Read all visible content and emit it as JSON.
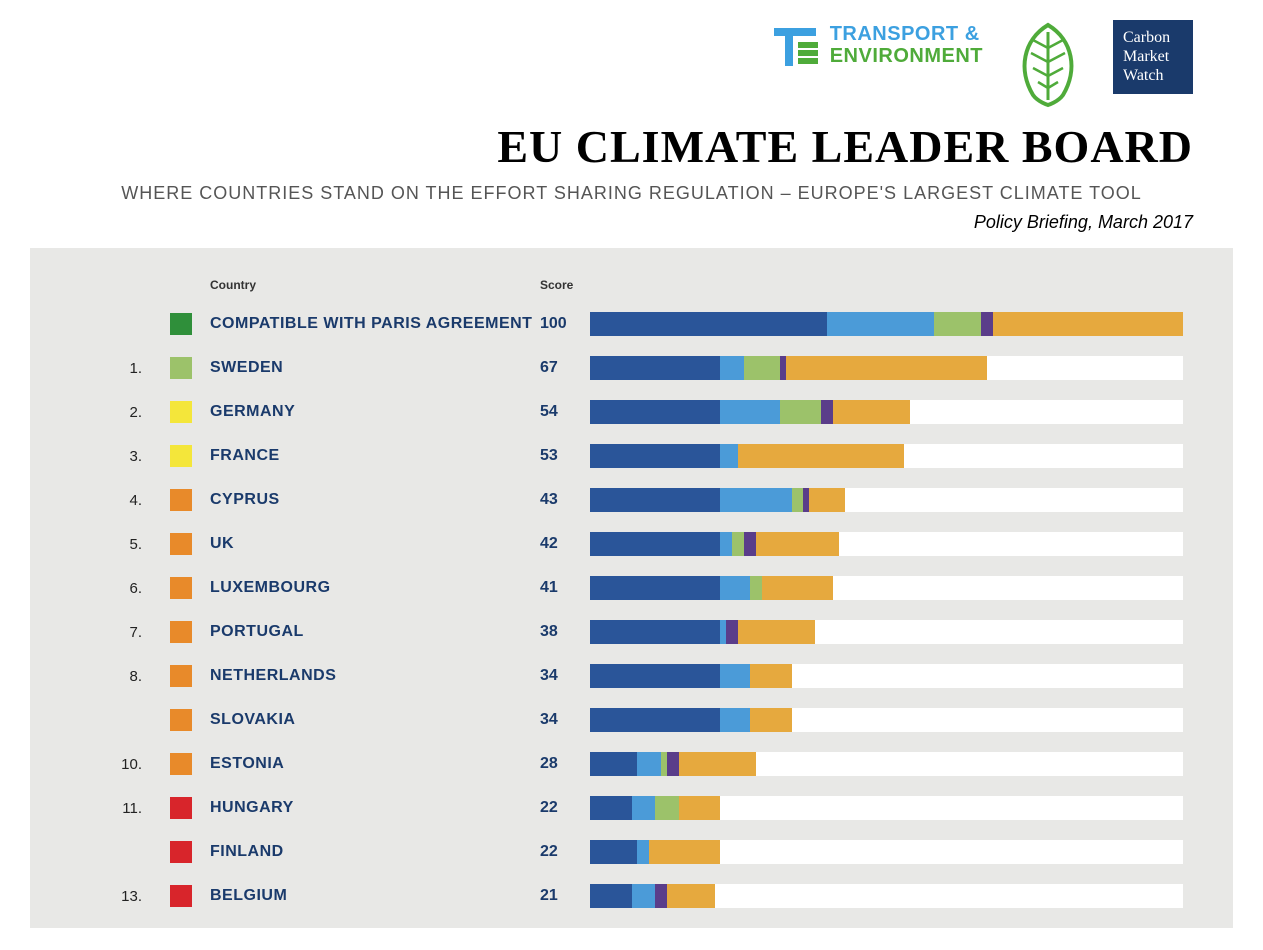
{
  "logos": {
    "te_line1": "TRANSPORT &",
    "te_line2": "ENVIRONMENT",
    "te_blue": "#3ca0e0",
    "te_green": "#4fab3a",
    "cmw_line1": "Carbon",
    "cmw_line2": "Market",
    "cmw_line3": "Watch",
    "cmw_bg": "#1a3a6b",
    "leaf_stroke": "#4fab3a",
    "leaf_fill": "#ffffff"
  },
  "header": {
    "title": "EU CLIMATE LEADER BOARD",
    "subtitle": "WHERE COUNTRIES STAND ON THE EFFORT SHARING REGULATION – EUROPE'S LARGEST CLIMATE TOOL",
    "dateline": "Policy Briefing, March 2017"
  },
  "chart": {
    "background": "#e8e8e6",
    "track_bg": "#ffffff",
    "country_header": "Country",
    "score_header": "Score",
    "text_color": "#1a3a6b",
    "max_score": 100,
    "segment_colors": {
      "darkblue": "#2a5599",
      "lightblue": "#4b9bd8",
      "green": "#9cc26a",
      "purple": "#5a3d8a",
      "orange": "#e6a93e"
    },
    "swatch_colors": {
      "darkgreen": "#2f8f3a",
      "lightgreen": "#9cc26a",
      "yellow": "#f4e63a",
      "orange": "#e88a2a",
      "red": "#d8252b"
    },
    "rows": [
      {
        "rank": "",
        "swatch": "darkgreen",
        "country": "COMPATIBLE WITH PARIS AGREEMENT",
        "score": 100,
        "segments": [
          40,
          18,
          8,
          2,
          32
        ]
      },
      {
        "rank": "1.",
        "swatch": "lightgreen",
        "country": "SWEDEN",
        "score": 67,
        "segments": [
          22,
          4,
          6,
          1,
          34
        ]
      },
      {
        "rank": "2.",
        "swatch": "yellow",
        "country": "GERMANY",
        "score": 54,
        "segments": [
          22,
          10,
          7,
          2,
          13
        ]
      },
      {
        "rank": "3.",
        "swatch": "yellow",
        "country": "FRANCE",
        "score": 53,
        "segments": [
          22,
          3,
          0,
          0,
          28
        ]
      },
      {
        "rank": "4.",
        "swatch": "orange",
        "country": "CYPRUS",
        "score": 43,
        "segments": [
          22,
          12,
          2,
          1,
          6
        ]
      },
      {
        "rank": "5.",
        "swatch": "orange",
        "country": "UK",
        "score": 42,
        "segments": [
          22,
          2,
          2,
          2,
          14
        ]
      },
      {
        "rank": "6.",
        "swatch": "orange",
        "country": "LUXEMBOURG",
        "score": 41,
        "segments": [
          22,
          5,
          2,
          0,
          12
        ]
      },
      {
        "rank": "7.",
        "swatch": "orange",
        "country": "PORTUGAL",
        "score": 38,
        "segments": [
          22,
          1,
          0,
          2,
          13
        ]
      },
      {
        "rank": "8.",
        "swatch": "orange",
        "country": "NETHERLANDS",
        "score": 34,
        "segments": [
          22,
          5,
          0,
          0,
          7
        ]
      },
      {
        "rank": "",
        "swatch": "orange",
        "country": "SLOVAKIA",
        "score": 34,
        "segments": [
          22,
          5,
          0,
          0,
          7
        ]
      },
      {
        "rank": "10.",
        "swatch": "orange",
        "country": "ESTONIA",
        "score": 28,
        "segments": [
          8,
          4,
          1,
          2,
          13
        ]
      },
      {
        "rank": "11.",
        "swatch": "red",
        "country": "HUNGARY",
        "score": 22,
        "segments": [
          7,
          4,
          4,
          0,
          7
        ]
      },
      {
        "rank": "",
        "swatch": "red",
        "country": "FINLAND",
        "score": 22,
        "segments": [
          8,
          2,
          0,
          0,
          12
        ]
      },
      {
        "rank": "13.",
        "swatch": "red",
        "country": "BELGIUM",
        "score": 21,
        "segments": [
          7,
          4,
          0,
          2,
          8
        ]
      }
    ]
  }
}
